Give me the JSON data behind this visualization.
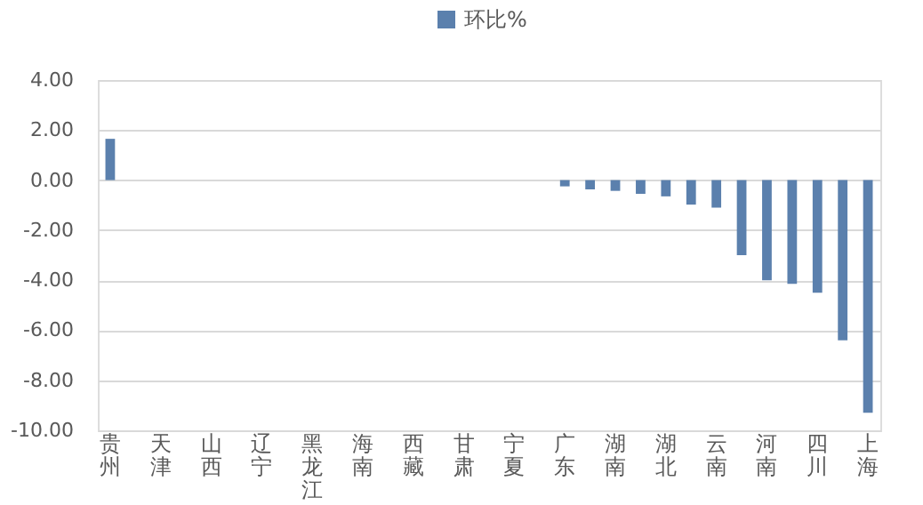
{
  "chart_data": {
    "type": "bar",
    "categories": [
      "贵州",
      null,
      "天津",
      null,
      "山西",
      null,
      "辽宁",
      null,
      "黑龙江",
      null,
      "海南",
      null,
      "西藏",
      null,
      "甘肃",
      null,
      "宁夏",
      null,
      "广东",
      null,
      "湖南",
      null,
      "湖北",
      null,
      "云南",
      null,
      "河南",
      null,
      "四川",
      null,
      "上海"
    ],
    "series": [
      {
        "name": "环比%",
        "color": "#5b80ad",
        "values": [
          1.65,
          0,
          0,
          0,
          0,
          0,
          0,
          0,
          0,
          0,
          0,
          0,
          0,
          0,
          0,
          0,
          0,
          0,
          -0.25,
          -0.37,
          -0.43,
          -0.55,
          -0.65,
          -0.98,
          -1.1,
          -3.0,
          -4.0,
          -4.15,
          -4.5,
          -6.4,
          -9.3
        ]
      }
    ],
    "ylim": [
      -10,
      4
    ],
    "yticks": [
      {
        "value": 4,
        "label": "4.00"
      },
      {
        "value": 2,
        "label": "2.00"
      },
      {
        "value": 0,
        "label": "0.00"
      },
      {
        "value": -2,
        "label": "-2.00"
      },
      {
        "value": -4,
        "label": "-4.00"
      },
      {
        "value": -6,
        "label": "-6.00"
      },
      {
        "value": -8,
        "label": "-8.00"
      },
      {
        "value": -10,
        "label": "-10.00"
      }
    ],
    "grid": "y",
    "legend": "top"
  }
}
